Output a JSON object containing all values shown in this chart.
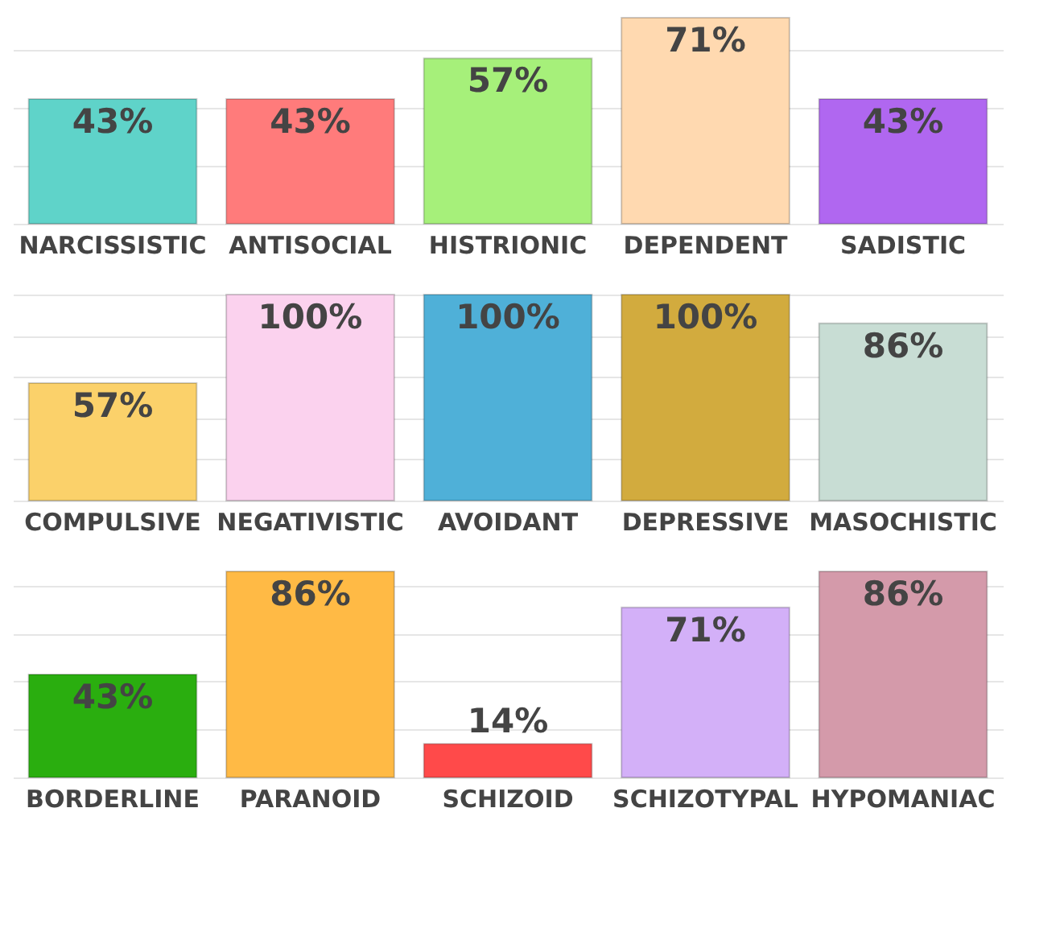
{
  "chart_data": [
    {
      "type": "bar",
      "categories": [
        "NARCISSISTIC",
        "ANTISOCIAL",
        "HISTRIONIC",
        "DEPENDENT",
        "SADISTIC"
      ],
      "values": [
        43,
        43,
        57,
        71,
        43
      ],
      "value_labels": [
        "43%",
        "43%",
        "57%",
        "71%",
        "43%"
      ],
      "colors": [
        "#5fd3c9",
        "#ff7b7b",
        "#a6f07a",
        "#ffd9b0",
        "#b067f0"
      ],
      "grid": "y",
      "tick_labels": "x"
    },
    {
      "type": "bar",
      "categories": [
        "COMPULSIVE",
        "NEGATIVISTIC",
        "AVOIDANT",
        "DEPRESSIVE",
        "MASOCHISTIC"
      ],
      "values": [
        57,
        100,
        100,
        100,
        86
      ],
      "value_labels": [
        "57%",
        "100%",
        "100%",
        "100%",
        "86%"
      ],
      "colors": [
        "#fbd16a",
        "#fbd2ee",
        "#4fb0d8",
        "#d2ab3e",
        "#c8ddd4"
      ],
      "grid": "y",
      "tick_labels": "x"
    },
    {
      "type": "bar",
      "categories": [
        "BORDERLINE",
        "PARANOID",
        "SCHIZOID",
        "SCHIZOTYPAL",
        "HYPOMANIAC"
      ],
      "values": [
        43,
        86,
        14,
        71,
        86
      ],
      "value_labels": [
        "43%",
        "86%",
        "14%",
        "71%",
        "86%"
      ],
      "colors": [
        "#2aae0f",
        "#ffba45",
        "#ff4a4a",
        "#d3b0f8",
        "#d49aaa"
      ],
      "grid": "y",
      "tick_labels": "x"
    }
  ]
}
